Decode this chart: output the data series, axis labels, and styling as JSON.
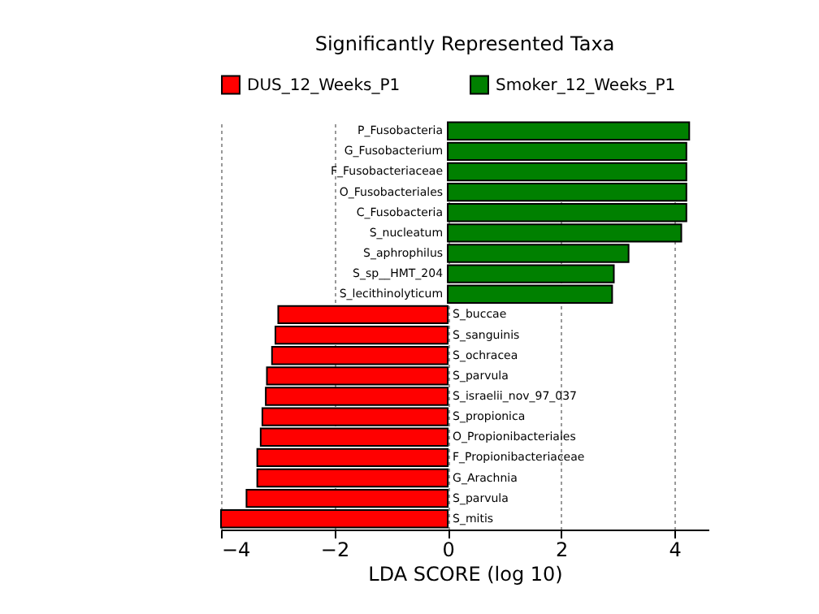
{
  "chart_data": {
    "type": "bar",
    "orientation": "horizontal",
    "title": "Significantly Represented Taxa",
    "xlabel": "LDA SCORE (log 10)",
    "categories": [
      "P_Fusobacteria",
      "G_Fusobacterium",
      "F_Fusobacteriaceae",
      "O_Fusobacteriales",
      "C_Fusobacteria",
      "S_nucleatum",
      "S_aphrophilus",
      "S_sp__HMT_204",
      "S_lecithinolyticum",
      "S_buccae",
      "S_sanguinis",
      "S_ochracea",
      "S_parvula",
      "S_israelii_nov_97_037",
      "S_propionica",
      "O_Propionibacteriales",
      "F_Propionibacteriaceae",
      "G_Arachnia",
      "S_parvula",
      "S_mitis"
    ],
    "series": [
      {
        "name": "DUS_12_Weeks_P1",
        "color": "#ff0000",
        "values": [
          null,
          null,
          null,
          null,
          null,
          null,
          null,
          null,
          null,
          -2.99,
          -3.04,
          -3.1,
          -3.19,
          -3.21,
          -3.27,
          -3.3,
          -3.36,
          -3.36,
          -3.55,
          -4.0
        ]
      },
      {
        "name": "Smoker_12_Weeks_P1",
        "color": "#008000",
        "values": [
          4.26,
          4.21,
          4.21,
          4.21,
          4.21,
          4.12,
          3.19,
          2.93,
          2.9,
          null,
          null,
          null,
          null,
          null,
          null,
          null,
          null,
          null,
          null,
          null
        ]
      }
    ],
    "xticks": [
      -4,
      -2,
      0,
      2,
      4
    ],
    "xlim": [
      -4,
      4.6
    ],
    "grid": "x",
    "legend": "top"
  }
}
